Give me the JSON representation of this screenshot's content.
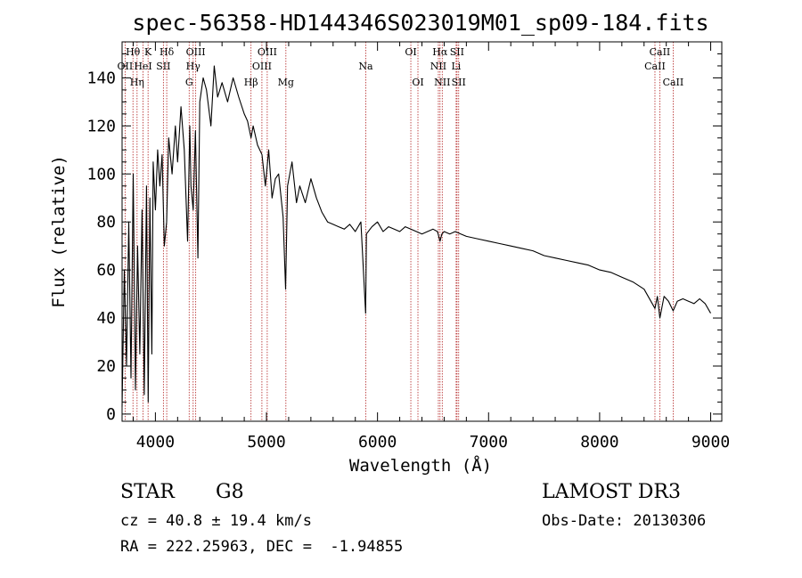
{
  "chart_data": {
    "type": "line",
    "title": "spec-56358-HD144346S023019M01_sp09-184.fits",
    "xlabel": "Wavelength (Å)",
    "ylabel": "Flux (relative)",
    "xlim": [
      3700,
      9100
    ],
    "ylim": [
      -3,
      155
    ],
    "x_ticks": [
      4000,
      5000,
      6000,
      7000,
      8000,
      9000
    ],
    "y_ticks": [
      0,
      20,
      40,
      60,
      80,
      100,
      120,
      140
    ],
    "series": [
      {
        "name": "spectrum",
        "x": [
          3700,
          3720,
          3740,
          3760,
          3780,
          3800,
          3820,
          3840,
          3860,
          3880,
          3900,
          3920,
          3935,
          3950,
          3968,
          3980,
          4000,
          4020,
          4040,
          4060,
          4080,
          4101,
          4120,
          4150,
          4180,
          4200,
          4230,
          4260,
          4290,
          4310,
          4320,
          4340,
          4360,
          4383,
          4400,
          4430,
          4460,
          4500,
          4530,
          4560,
          4600,
          4650,
          4700,
          4750,
          4800,
          4830,
          4861,
          4880,
          4920,
          4960,
          4990,
          5020,
          5050,
          5080,
          5110,
          5150,
          5172,
          5190,
          5230,
          5270,
          5300,
          5350,
          5400,
          5450,
          5500,
          5550,
          5600,
          5650,
          5700,
          5750,
          5800,
          5850,
          5893,
          5900,
          5950,
          6000,
          6050,
          6100,
          6150,
          6200,
          6250,
          6300,
          6350,
          6400,
          6450,
          6500,
          6540,
          6563,
          6580,
          6600,
          6650,
          6700,
          6750,
          6800,
          6900,
          7000,
          7100,
          7200,
          7300,
          7400,
          7500,
          7600,
          7700,
          7800,
          7900,
          8000,
          8100,
          8200,
          8300,
          8400,
          8498,
          8520,
          8542,
          8580,
          8620,
          8662,
          8700,
          8750,
          8800,
          8850,
          8900,
          8950,
          9000
        ],
        "values": [
          3,
          60,
          20,
          80,
          15,
          100,
          10,
          70,
          25,
          85,
          8,
          95,
          5,
          90,
          25,
          105,
          85,
          110,
          95,
          108,
          70,
          80,
          115,
          100,
          120,
          105,
          128,
          110,
          72,
          120,
          95,
          85,
          118,
          65,
          130,
          140,
          135,
          120,
          145,
          132,
          138,
          130,
          140,
          132,
          125,
          122,
          115,
          120,
          112,
          108,
          95,
          110,
          90,
          98,
          100,
          82,
          52,
          95,
          105,
          88,
          95,
          88,
          98,
          90,
          84,
          80,
          79,
          78,
          77,
          79,
          76,
          80,
          42,
          75,
          78,
          80,
          76,
          78,
          77,
          76,
          78,
          77,
          76,
          75,
          76,
          77,
          76,
          72,
          75,
          76,
          75,
          76,
          75,
          74,
          73,
          72,
          71,
          70,
          69,
          68,
          66,
          65,
          64,
          63,
          62,
          60,
          59,
          57,
          55,
          52,
          44,
          49,
          40,
          49,
          47,
          43,
          47,
          48,
          47,
          46,
          48,
          46,
          42
        ]
      }
    ],
    "emission_lines": [
      {
        "label": "OII",
        "wavelength": 3727,
        "row": 2
      },
      {
        "label": "Hθ",
        "wavelength": 3798,
        "row": 1
      },
      {
        "label": "Hη",
        "wavelength": 3835,
        "row": 3
      },
      {
        "label": "HeI",
        "wavelength": 3889,
        "row": 2
      },
      {
        "label": "K",
        "wavelength": 3934,
        "row": 1
      },
      {
        "label": "SII",
        "wavelength": 4072,
        "row": 2
      },
      {
        "label": "Hδ",
        "wavelength": 4102,
        "row": 1
      },
      {
        "label": "G",
        "wavelength": 4304,
        "row": 3
      },
      {
        "label": "Hγ",
        "wavelength": 4340,
        "row": 2
      },
      {
        "label": "OIII",
        "wavelength": 4363,
        "row": 1
      },
      {
        "label": "Hβ",
        "wavelength": 4861,
        "row": 3
      },
      {
        "label": "OIII",
        "wavelength": 4959,
        "row": 2
      },
      {
        "label": "OIII",
        "wavelength": 5007,
        "row": 1
      },
      {
        "label": "Mg",
        "wavelength": 5175,
        "row": 3
      },
      {
        "label": "Na",
        "wavelength": 5894,
        "row": 2
      },
      {
        "label": "OI",
        "wavelength": 6300,
        "row": 1
      },
      {
        "label": "OI",
        "wavelength": 6364,
        "row": 3
      },
      {
        "label": "NII",
        "wavelength": 6548,
        "row": 2
      },
      {
        "label": "Hα",
        "wavelength": 6563,
        "row": 1
      },
      {
        "label": "NII",
        "wavelength": 6583,
        "row": 3
      },
      {
        "label": "Li",
        "wavelength": 6708,
        "row": 2
      },
      {
        "label": "SII",
        "wavelength": 6716,
        "row": 1
      },
      {
        "label": "SII",
        "wavelength": 6731,
        "row": 3
      },
      {
        "label": "CaII",
        "wavelength": 8498,
        "row": 2
      },
      {
        "label": "CaII",
        "wavelength": 8542,
        "row": 1
      },
      {
        "label": "CaII",
        "wavelength": 8662,
        "row": 3
      }
    ],
    "grid": false
  },
  "info": {
    "object_class": "STAR",
    "subclass": "G8",
    "survey": "LAMOST DR3",
    "redshift_line": "cz = 40.8 ± 19.4 km/s",
    "obs_date_line": "Obs-Date: 20130306",
    "coords_line": "RA = 222.25963, DEC =  -1.94855"
  },
  "colors": {
    "line_marker": "#b22222",
    "spectrum": "#000000"
  }
}
